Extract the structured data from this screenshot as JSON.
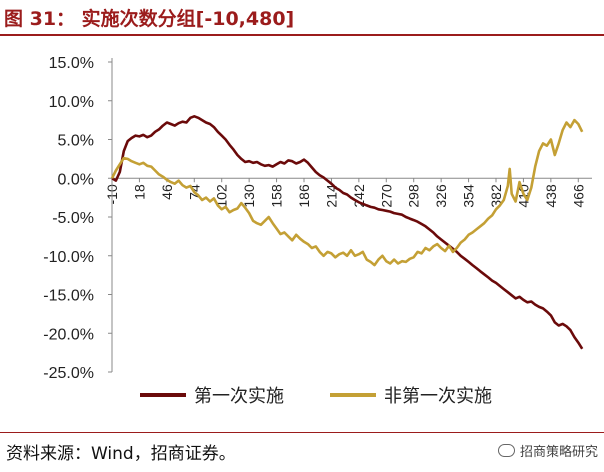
{
  "title": "图 31： 实施次数分组[-10,480]",
  "source": "资料来源：Wind，招商证券。",
  "brand": "招商策略研究",
  "chart_data": {
    "type": "line",
    "title": "图 31： 实施次数分组[-10,480]",
    "xlabel": "",
    "ylabel": "",
    "x_ticks": [
      -10,
      18,
      46,
      74,
      102,
      130,
      158,
      186,
      214,
      242,
      270,
      298,
      326,
      354,
      382,
      410,
      438,
      466
    ],
    "x_range": [
      -10,
      480
    ],
    "y_ticks": [
      -0.25,
      -0.2,
      -0.15,
      -0.1,
      -0.05,
      0.0,
      0.05,
      0.1,
      0.15
    ],
    "y_tick_labels": [
      "-25.0%",
      "-20.0%",
      "-15.0%",
      "-10.0%",
      "-5.0%",
      "0.0%",
      "5.0%",
      "10.0%",
      "15.0%"
    ],
    "ylim": [
      -0.25,
      0.15
    ],
    "grid": false,
    "legend_position": "bottom",
    "series": [
      {
        "name": "第一次实施",
        "color": "#6b0a0a",
        "points": [
          [
            -10,
            0.0
          ],
          [
            -6,
            -0.003
          ],
          [
            -2,
            0.008
          ],
          [
            2,
            0.035
          ],
          [
            6,
            0.048
          ],
          [
            10,
            0.052
          ],
          [
            14,
            0.055
          ],
          [
            18,
            0.054
          ],
          [
            22,
            0.056
          ],
          [
            26,
            0.053
          ],
          [
            30,
            0.055
          ],
          [
            34,
            0.06
          ],
          [
            38,
            0.063
          ],
          [
            42,
            0.068
          ],
          [
            46,
            0.072
          ],
          [
            50,
            0.07
          ],
          [
            54,
            0.068
          ],
          [
            58,
            0.071
          ],
          [
            62,
            0.073
          ],
          [
            66,
            0.072
          ],
          [
            70,
            0.078
          ],
          [
            74,
            0.08
          ],
          [
            78,
            0.078
          ],
          [
            82,
            0.075
          ],
          [
            86,
            0.072
          ],
          [
            90,
            0.07
          ],
          [
            94,
            0.066
          ],
          [
            98,
            0.06
          ],
          [
            102,
            0.055
          ],
          [
            106,
            0.05
          ],
          [
            110,
            0.043
          ],
          [
            114,
            0.037
          ],
          [
            118,
            0.03
          ],
          [
            122,
            0.025
          ],
          [
            126,
            0.021
          ],
          [
            130,
            0.022
          ],
          [
            134,
            0.02
          ],
          [
            138,
            0.021
          ],
          [
            142,
            0.018
          ],
          [
            146,
            0.016
          ],
          [
            150,
            0.017
          ],
          [
            154,
            0.015
          ],
          [
            158,
            0.018
          ],
          [
            162,
            0.021
          ],
          [
            166,
            0.019
          ],
          [
            170,
            0.023
          ],
          [
            174,
            0.022
          ],
          [
            178,
            0.019
          ],
          [
            182,
            0.021
          ],
          [
            186,
            0.024
          ],
          [
            190,
            0.02
          ],
          [
            194,
            0.014
          ],
          [
            198,
            0.008
          ],
          [
            202,
            0.004
          ],
          [
            206,
            0.001
          ],
          [
            210,
            -0.003
          ],
          [
            214,
            -0.007
          ],
          [
            218,
            -0.012
          ],
          [
            222,
            -0.015
          ],
          [
            226,
            -0.019
          ],
          [
            230,
            -0.021
          ],
          [
            234,
            -0.025
          ],
          [
            238,
            -0.028
          ],
          [
            242,
            -0.031
          ],
          [
            246,
            -0.033
          ],
          [
            250,
            -0.035
          ],
          [
            254,
            -0.037
          ],
          [
            258,
            -0.038
          ],
          [
            262,
            -0.04
          ],
          [
            266,
            -0.041
          ],
          [
            270,
            -0.042
          ],
          [
            274,
            -0.043
          ],
          [
            278,
            -0.045
          ],
          [
            282,
            -0.046
          ],
          [
            286,
            -0.047
          ],
          [
            290,
            -0.05
          ],
          [
            294,
            -0.052
          ],
          [
            298,
            -0.054
          ],
          [
            302,
            -0.056
          ],
          [
            306,
            -0.059
          ],
          [
            310,
            -0.062
          ],
          [
            314,
            -0.066
          ],
          [
            318,
            -0.07
          ],
          [
            322,
            -0.075
          ],
          [
            326,
            -0.079
          ],
          [
            330,
            -0.083
          ],
          [
            334,
            -0.087
          ],
          [
            338,
            -0.091
          ],
          [
            342,
            -0.095
          ],
          [
            346,
            -0.1
          ],
          [
            350,
            -0.104
          ],
          [
            354,
            -0.108
          ],
          [
            358,
            -0.112
          ],
          [
            362,
            -0.116
          ],
          [
            366,
            -0.12
          ],
          [
            370,
            -0.124
          ],
          [
            374,
            -0.128
          ],
          [
            378,
            -0.132
          ],
          [
            382,
            -0.135
          ],
          [
            386,
            -0.139
          ],
          [
            390,
            -0.143
          ],
          [
            394,
            -0.147
          ],
          [
            398,
            -0.151
          ],
          [
            402,
            -0.155
          ],
          [
            406,
            -0.153
          ],
          [
            410,
            -0.157
          ],
          [
            414,
            -0.16
          ],
          [
            418,
            -0.159
          ],
          [
            422,
            -0.163
          ],
          [
            426,
            -0.166
          ],
          [
            430,
            -0.168
          ],
          [
            434,
            -0.172
          ],
          [
            438,
            -0.177
          ],
          [
            442,
            -0.186
          ],
          [
            446,
            -0.19
          ],
          [
            450,
            -0.188
          ],
          [
            454,
            -0.191
          ],
          [
            458,
            -0.196
          ],
          [
            462,
            -0.205
          ],
          [
            466,
            -0.212
          ],
          [
            470,
            -0.22
          ]
        ]
      },
      {
        "name": "非第一次实施",
        "color": "#c4a035",
        "points": [
          [
            -10,
            0.0
          ],
          [
            -6,
            0.01
          ],
          [
            -2,
            0.018
          ],
          [
            2,
            0.026
          ],
          [
            6,
            0.025
          ],
          [
            10,
            0.022
          ],
          [
            14,
            0.02
          ],
          [
            18,
            0.018
          ],
          [
            22,
            0.02
          ],
          [
            26,
            0.016
          ],
          [
            30,
            0.015
          ],
          [
            34,
            0.01
          ],
          [
            38,
            0.005
          ],
          [
            42,
            0.002
          ],
          [
            46,
            -0.002
          ],
          [
            50,
            -0.005
          ],
          [
            54,
            -0.007
          ],
          [
            58,
            -0.003
          ],
          [
            62,
            -0.009
          ],
          [
            66,
            -0.012
          ],
          [
            70,
            -0.01
          ],
          [
            74,
            -0.018
          ],
          [
            78,
            -0.022
          ],
          [
            82,
            -0.028
          ],
          [
            86,
            -0.025
          ],
          [
            90,
            -0.03
          ],
          [
            94,
            -0.026
          ],
          [
            98,
            -0.035
          ],
          [
            102,
            -0.04
          ],
          [
            106,
            -0.037
          ],
          [
            110,
            -0.044
          ],
          [
            114,
            -0.041
          ],
          [
            118,
            -0.039
          ],
          [
            122,
            -0.032
          ],
          [
            126,
            -0.038
          ],
          [
            130,
            -0.045
          ],
          [
            134,
            -0.055
          ],
          [
            138,
            -0.058
          ],
          [
            142,
            -0.06
          ],
          [
            146,
            -0.055
          ],
          [
            150,
            -0.05
          ],
          [
            154,
            -0.058
          ],
          [
            158,
            -0.065
          ],
          [
            162,
            -0.072
          ],
          [
            166,
            -0.07
          ],
          [
            170,
            -0.075
          ],
          [
            174,
            -0.08
          ],
          [
            178,
            -0.073
          ],
          [
            182,
            -0.078
          ],
          [
            186,
            -0.082
          ],
          [
            190,
            -0.085
          ],
          [
            194,
            -0.09
          ],
          [
            198,
            -0.088
          ],
          [
            202,
            -0.095
          ],
          [
            206,
            -0.1
          ],
          [
            210,
            -0.095
          ],
          [
            214,
            -0.097
          ],
          [
            218,
            -0.102
          ],
          [
            222,
            -0.098
          ],
          [
            226,
            -0.096
          ],
          [
            230,
            -0.1
          ],
          [
            234,
            -0.093
          ],
          [
            238,
            -0.1
          ],
          [
            242,
            -0.098
          ],
          [
            246,
            -0.095
          ],
          [
            250,
            -0.105
          ],
          [
            254,
            -0.108
          ],
          [
            258,
            -0.112
          ],
          [
            262,
            -0.105
          ],
          [
            266,
            -0.1
          ],
          [
            270,
            -0.107
          ],
          [
            274,
            -0.11
          ],
          [
            278,
            -0.105
          ],
          [
            282,
            -0.11
          ],
          [
            286,
            -0.107
          ],
          [
            290,
            -0.108
          ],
          [
            294,
            -0.104
          ],
          [
            298,
            -0.102
          ],
          [
            302,
            -0.095
          ],
          [
            306,
            -0.097
          ],
          [
            310,
            -0.09
          ],
          [
            314,
            -0.093
          ],
          [
            318,
            -0.088
          ],
          [
            322,
            -0.085
          ],
          [
            326,
            -0.09
          ],
          [
            330,
            -0.094
          ],
          [
            334,
            -0.087
          ],
          [
            338,
            -0.095
          ],
          [
            342,
            -0.09
          ],
          [
            346,
            -0.083
          ],
          [
            350,
            -0.079
          ],
          [
            354,
            -0.073
          ],
          [
            358,
            -0.07
          ],
          [
            362,
            -0.066
          ],
          [
            366,
            -0.062
          ],
          [
            370,
            -0.058
          ],
          [
            374,
            -0.052
          ],
          [
            378,
            -0.048
          ],
          [
            382,
            -0.04
          ],
          [
            386,
            -0.035
          ],
          [
            390,
            -0.028
          ],
          [
            394,
            -0.01
          ],
          [
            396,
            0.012
          ],
          [
            398,
            -0.02
          ],
          [
            402,
            -0.03
          ],
          [
            406,
            -0.005
          ],
          [
            410,
            -0.02
          ],
          [
            414,
            -0.028
          ],
          [
            418,
            -0.012
          ],
          [
            422,
            0.015
          ],
          [
            426,
            0.035
          ],
          [
            430,
            0.045
          ],
          [
            434,
            0.042
          ],
          [
            438,
            0.05
          ],
          [
            442,
            0.03
          ],
          [
            446,
            0.045
          ],
          [
            450,
            0.062
          ],
          [
            454,
            0.072
          ],
          [
            458,
            0.066
          ],
          [
            462,
            0.075
          ],
          [
            466,
            0.07
          ],
          [
            470,
            0.06
          ]
        ]
      }
    ]
  }
}
